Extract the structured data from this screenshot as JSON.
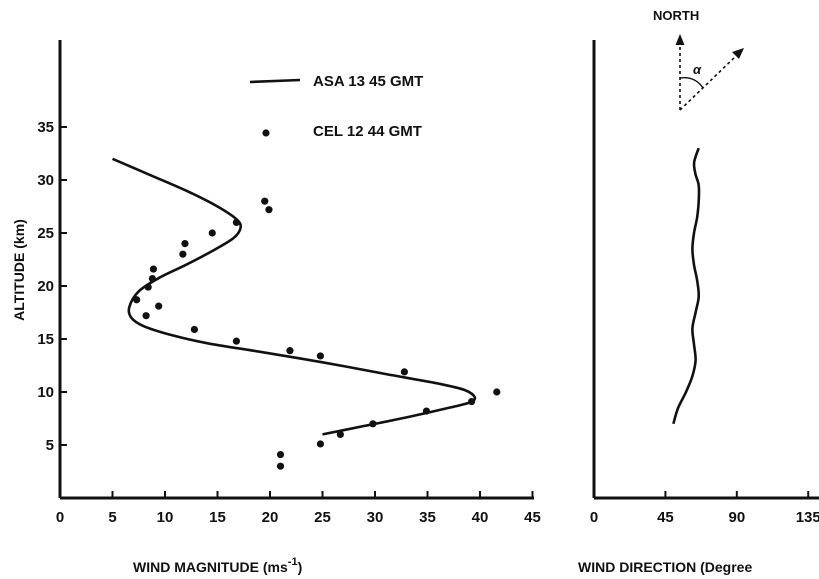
{
  "chart_data": [
    {
      "type": "line",
      "xlabel": "WIND MAGNITUDE  (ms",
      "xlabel_superscript": "-1",
      "xlabel_close": ")",
      "ylabel": "ALTITUDE  (km)",
      "xlim": [
        0,
        45
      ],
      "ylim": [
        0,
        38
      ],
      "x_ticks": [
        "0",
        "5",
        "10",
        "15",
        "20",
        "25",
        "30",
        "35",
        "40",
        "45"
      ],
      "y_ticks": [
        "5",
        "10",
        "15",
        "20",
        "25",
        "30",
        "35"
      ],
      "grid": false,
      "legend_position": "top",
      "series": [
        {
          "name": "ASA  13 45  GMT",
          "style": "line",
          "x": [
            5,
            8.5,
            12,
            15,
            16.8,
            17.2,
            16.5,
            14.5,
            12,
            9.5,
            7.5,
            6.6,
            6.8,
            8,
            10.5,
            14,
            19,
            25,
            31,
            36,
            38.5,
            39.5,
            39,
            37,
            33,
            29,
            25
          ],
          "y": [
            32,
            30.5,
            29,
            27.5,
            26.3,
            25.5,
            24.5,
            23.3,
            22,
            20.8,
            19.5,
            18,
            17,
            16.2,
            15.4,
            14.6,
            13.8,
            12.8,
            11.7,
            10.8,
            10.2,
            9.5,
            9.0,
            8.5,
            7.6,
            6.8,
            6.0
          ]
        },
        {
          "name": "CEL  12 44  GMT",
          "style": "points",
          "points": [
            [
              19.5,
              28.0
            ],
            [
              19.9,
              27.2
            ],
            [
              16.8,
              26.0
            ],
            [
              14.5,
              25.0
            ],
            [
              11.9,
              24.0
            ],
            [
              11.7,
              23.0
            ],
            [
              8.9,
              21.6
            ],
            [
              8.8,
              20.7
            ],
            [
              8.4,
              19.9
            ],
            [
              7.3,
              18.7
            ],
            [
              9.4,
              18.1
            ],
            [
              8.2,
              17.2
            ],
            [
              12.8,
              15.9
            ],
            [
              16.8,
              14.8
            ],
            [
              21.9,
              13.9
            ],
            [
              24.8,
              13.4
            ],
            [
              32.8,
              11.9
            ],
            [
              41.6,
              10.0
            ],
            [
              39.2,
              9.1
            ],
            [
              34.9,
              8.2
            ],
            [
              29.8,
              7.0
            ],
            [
              26.7,
              6.0
            ],
            [
              24.8,
              5.1
            ],
            [
              21.0,
              4.1
            ],
            [
              21.0,
              3.0
            ]
          ]
        }
      ]
    },
    {
      "type": "line",
      "xlabel": "WIND DIRECTION  (Degree",
      "xlim": [
        0,
        195
      ],
      "ylim": [
        0,
        38
      ],
      "x_ticks": [
        "0",
        "45",
        "90",
        "135"
      ],
      "grid": false,
      "annotation": {
        "north_label": "NORTH",
        "alpha_symbol": "α"
      },
      "series": [
        {
          "style": "line",
          "x": [
            50,
            53,
            58,
            62,
            64,
            63,
            62,
            64,
            66,
            65,
            63,
            62,
            63,
            65,
            66,
            66,
            64,
            63,
            64,
            66
          ],
          "y": [
            7.0,
            8.5,
            10.0,
            11.5,
            13.0,
            14.5,
            16.0,
            17.5,
            19.0,
            20.5,
            22.0,
            23.5,
            25.0,
            26.5,
            28.0,
            29.5,
            30.5,
            31.5,
            32.2,
            33.0
          ]
        }
      ]
    }
  ]
}
